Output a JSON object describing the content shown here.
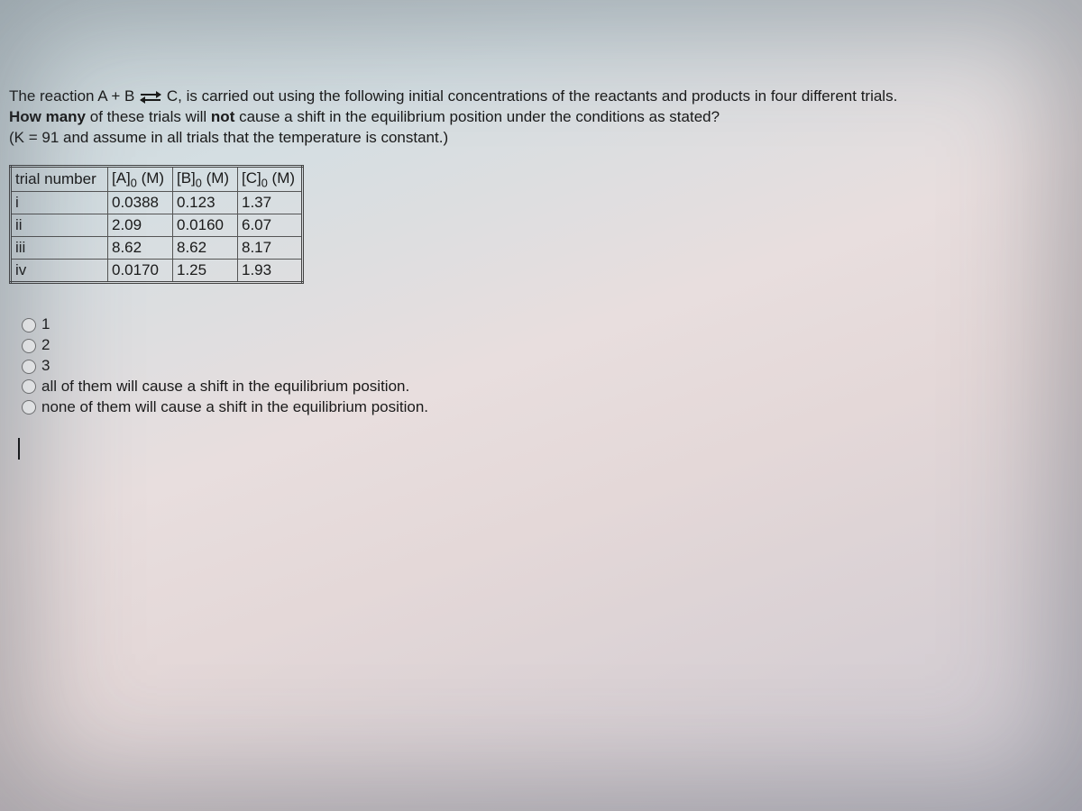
{
  "question": {
    "line1_pre": "The reaction A + B ",
    "line1_post": " C, is carried out using the following initial concentrations of the reactants and products in four different trials.",
    "line2_bold": "How many",
    "line2_rest_a": " of these trials will ",
    "line2_bold2": "not",
    "line2_rest_b": " cause a shift in the equilibrium position under the conditions as stated?",
    "line3": "(K = 91 and assume in all trials that the temperature is constant.)"
  },
  "table": {
    "headers": {
      "trial": "trial number",
      "a_pre": "[A]",
      "a_sub": "0",
      "a_post": " (M)",
      "b_pre": "[B]",
      "b_sub": "0",
      "b_post": " (M)",
      "c_pre": "[C]",
      "c_sub": "0",
      "c_post": " (M)"
    },
    "rows": [
      {
        "trial": "i",
        "a": "0.0388",
        "b": "0.123",
        "c": "1.37"
      },
      {
        "trial": "ii",
        "a": "2.09",
        "b": "0.0160",
        "c": "6.07"
      },
      {
        "trial": "iii",
        "a": "8.62",
        "b": "8.62",
        "c": "8.17"
      },
      {
        "trial": "iv",
        "a": "0.0170",
        "b": "1.25",
        "c": "1.93"
      }
    ]
  },
  "options": [
    {
      "label": "1"
    },
    {
      "label": "2"
    },
    {
      "label": "3"
    },
    {
      "label": "all of them will cause a shift in the equilibrium position."
    },
    {
      "label": "none of them will cause a shift in the equilibrium position."
    }
  ]
}
